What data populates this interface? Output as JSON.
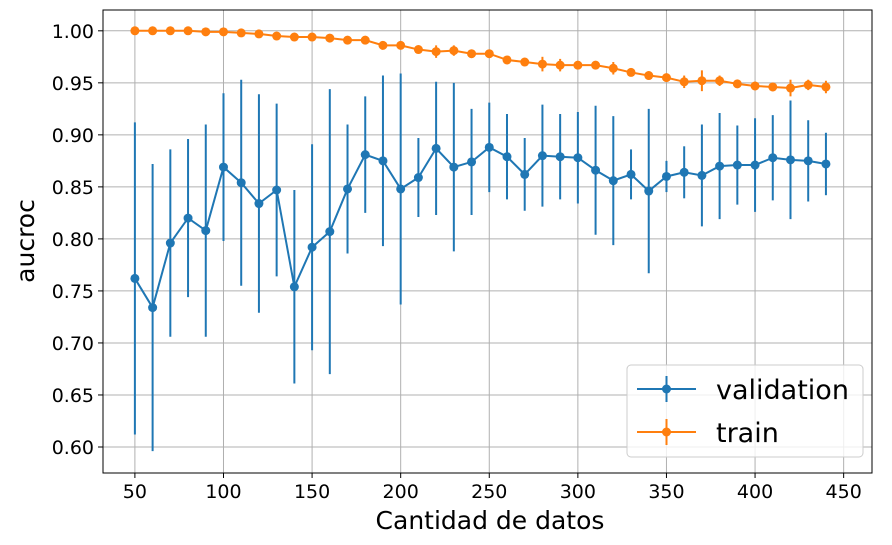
{
  "chart_data": {
    "type": "line",
    "title": "",
    "xlabel": "Cantidad de datos",
    "ylabel": "aucroc",
    "xlim": [
      32,
      466
    ],
    "ylim": [
      0.575,
      1.02
    ],
    "xticks": [
      50,
      100,
      150,
      200,
      250,
      300,
      350,
      400,
      450
    ],
    "yticks": [
      0.6,
      0.65,
      0.7,
      0.75,
      0.8,
      0.85,
      0.9,
      0.95,
      1.0
    ],
    "ytick_labels": [
      "0.60",
      "0.65",
      "0.70",
      "0.75",
      "0.80",
      "0.85",
      "0.90",
      "0.95",
      "1.00"
    ],
    "grid": true,
    "legend_position": "lower-right",
    "x": [
      50,
      60,
      70,
      80,
      90,
      100,
      110,
      120,
      130,
      140,
      150,
      160,
      170,
      180,
      190,
      200,
      210,
      220,
      230,
      240,
      250,
      260,
      270,
      280,
      290,
      300,
      310,
      320,
      330,
      340,
      350,
      360,
      370,
      380,
      390,
      400,
      410,
      420,
      430,
      440
    ],
    "series": [
      {
        "name": "validation",
        "color": "#1f77b4",
        "values": [
          0.762,
          0.734,
          0.796,
          0.82,
          0.808,
          0.869,
          0.854,
          0.834,
          0.847,
          0.754,
          0.792,
          0.807,
          0.848,
          0.881,
          0.875,
          0.848,
          0.859,
          0.887,
          0.869,
          0.874,
          0.888,
          0.879,
          0.862,
          0.88,
          0.879,
          0.878,
          0.866,
          0.856,
          0.862,
          0.846,
          0.86,
          0.864,
          0.861,
          0.87,
          0.871,
          0.871,
          0.878,
          0.876,
          0.875,
          0.872
        ],
        "errors": [
          0.15,
          0.138,
          0.09,
          0.076,
          0.102,
          0.071,
          0.099,
          0.105,
          0.083,
          0.093,
          0.099,
          0.137,
          0.062,
          0.056,
          0.082,
          0.111,
          0.038,
          0.064,
          0.081,
          0.051,
          0.043,
          0.041,
          0.035,
          0.049,
          0.041,
          0.044,
          0.062,
          0.062,
          0.024,
          0.079,
          0.015,
          0.025,
          0.049,
          0.051,
          0.038,
          0.045,
          0.041,
          0.057,
          0.039,
          0.03
        ]
      },
      {
        "name": "train",
        "color": "#ff7f0e",
        "values": [
          1.0,
          1.0,
          1.0,
          1.0,
          0.999,
          0.999,
          0.998,
          0.997,
          0.995,
          0.994,
          0.994,
          0.993,
          0.991,
          0.991,
          0.986,
          0.986,
          0.982,
          0.98,
          0.981,
          0.978,
          0.978,
          0.972,
          0.97,
          0.968,
          0.967,
          0.967,
          0.967,
          0.964,
          0.96,
          0.957,
          0.955,
          0.951,
          0.952,
          0.952,
          0.949,
          0.947,
          0.946,
          0.945,
          0.948,
          0.946
        ],
        "errors": [
          0.0,
          0.0,
          0.0,
          0.0,
          0.0,
          0.0,
          0.001,
          0.001,
          0.001,
          0.001,
          0.001,
          0.002,
          0.002,
          0.003,
          0.002,
          0.002,
          0.003,
          0.006,
          0.005,
          0.002,
          0.003,
          0.003,
          0.003,
          0.007,
          0.006,
          0.002,
          0.002,
          0.006,
          0.003,
          0.004,
          0.004,
          0.006,
          0.01,
          0.005,
          0.003,
          0.004,
          0.004,
          0.008,
          0.005,
          0.006
        ]
      }
    ]
  }
}
